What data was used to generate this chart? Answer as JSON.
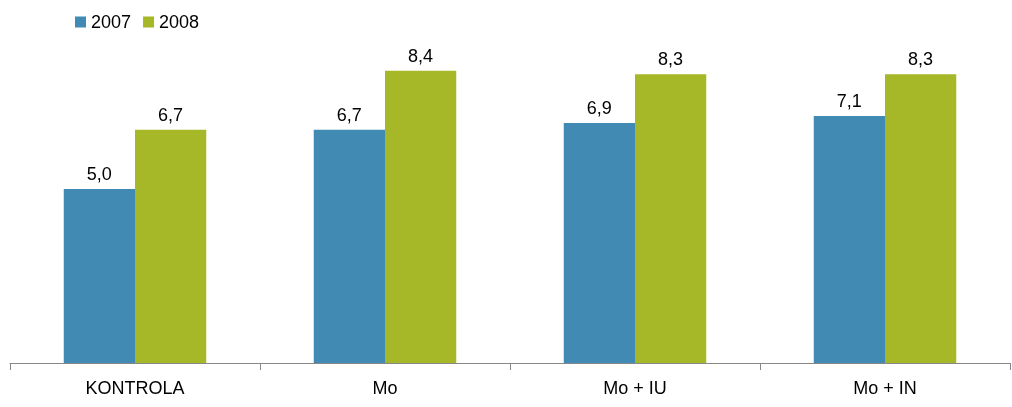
{
  "chart_data": {
    "type": "bar",
    "categories": [
      "KONTROLA",
      "Mo",
      "Mo + IU",
      "Mo + IN"
    ],
    "series": [
      {
        "name": "2007",
        "color": "#418ab3",
        "values": [
          5.0,
          6.7,
          6.9,
          7.1
        ],
        "value_labels": [
          "5,0",
          "6,7",
          "6,9",
          "7,1"
        ]
      },
      {
        "name": "2008",
        "color": "#a6b727",
        "values": [
          6.7,
          8.4,
          8.3,
          8.3
        ],
        "value_labels": [
          "6,7",
          "8,4",
          "8,3",
          "8,3"
        ]
      }
    ],
    "legend": "top left"
  }
}
